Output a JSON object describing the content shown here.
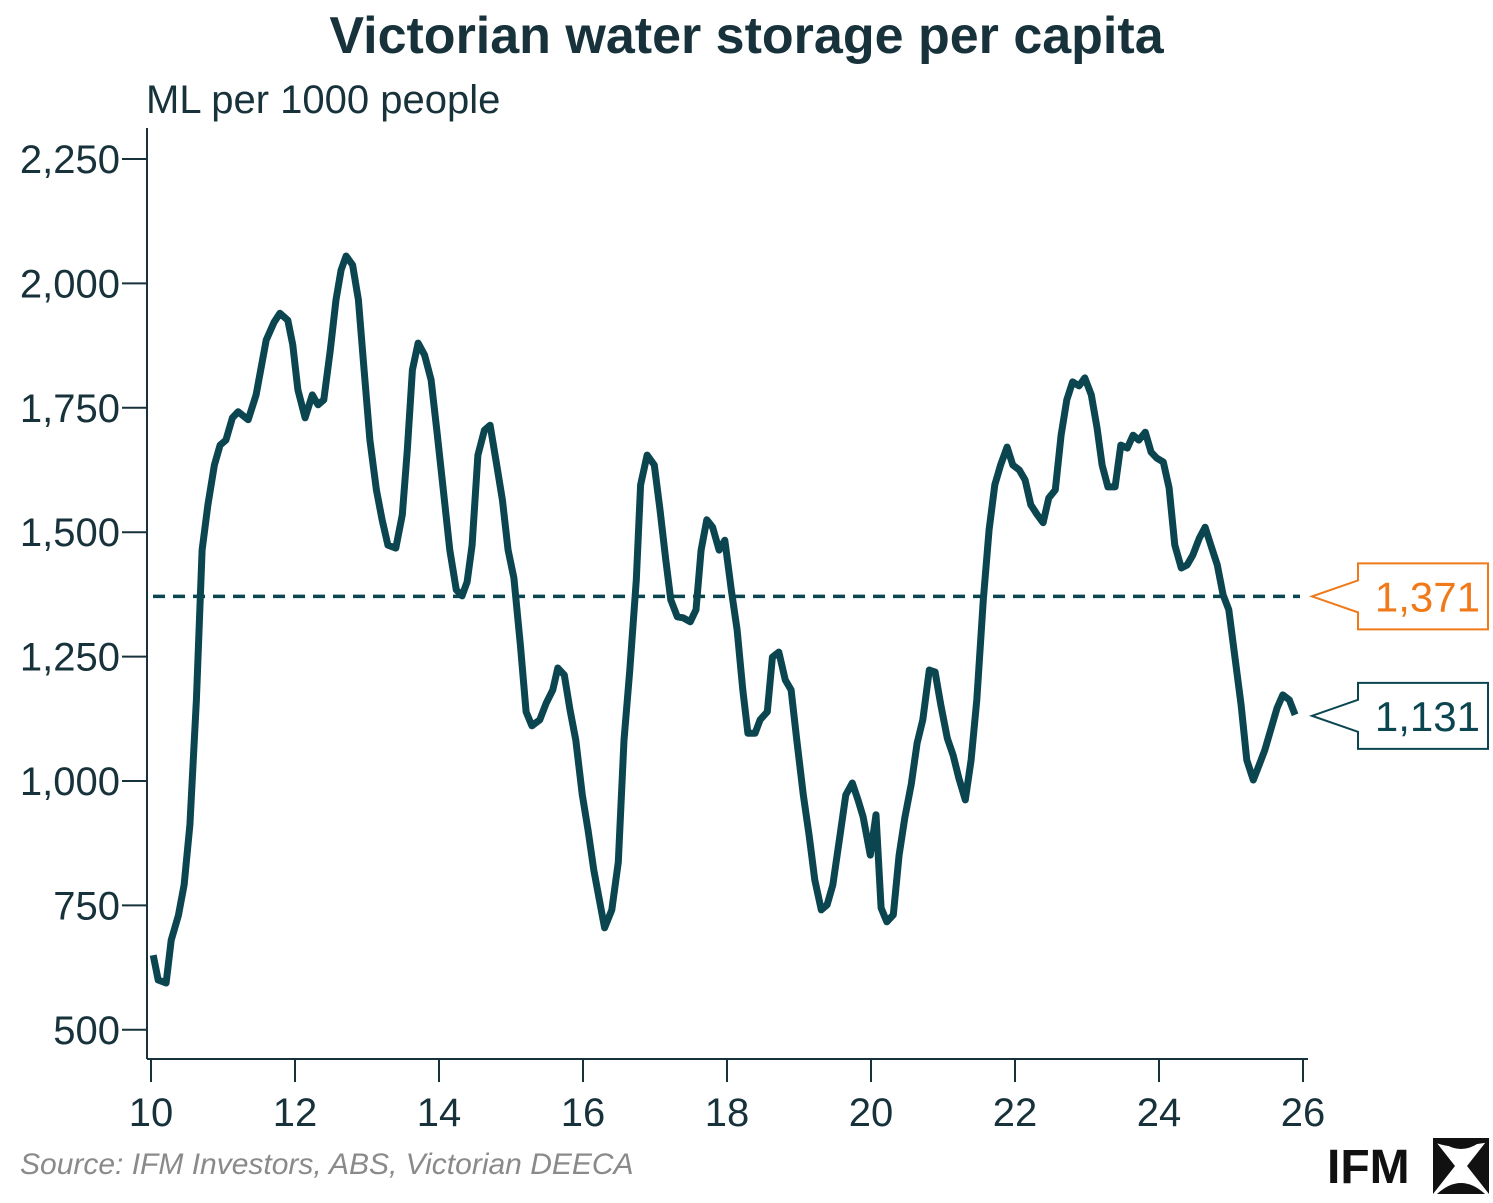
{
  "chart_data": {
    "type": "line",
    "title": "Victorian water storage per capita",
    "ylabel": "ML per 1000 people",
    "xlabel": "",
    "xlim": [
      10,
      26
    ],
    "ylim": [
      450,
      2300
    ],
    "x_ticks": [
      "10",
      "12",
      "14",
      "16",
      "18",
      "20",
      "22",
      "24",
      "26"
    ],
    "y_ticks": [
      "500",
      "750",
      "1,000",
      "1,250",
      "1,500",
      "1,750",
      "2,000",
      "2,250"
    ],
    "grid": false,
    "series": [
      {
        "color": "#0b4650",
        "x": [
          10.03,
          10.1,
          10.21,
          10.28,
          10.38,
          10.46,
          10.54,
          10.63,
          10.71,
          10.79,
          10.88,
          10.96,
          11.04,
          11.13,
          11.21,
          11.35,
          11.46,
          11.6,
          11.71,
          11.79,
          11.9,
          11.97,
          12.04,
          12.14,
          12.24,
          12.32,
          12.4,
          12.49,
          12.57,
          12.64,
          12.71,
          12.8,
          12.88,
          12.96,
          13.04,
          13.13,
          13.21,
          13.29,
          13.4,
          13.49,
          13.56,
          13.63,
          13.71,
          13.8,
          13.89,
          13.97,
          14.06,
          14.15,
          14.24,
          14.32,
          14.39,
          14.46,
          14.54,
          14.63,
          14.71,
          14.79,
          14.88,
          14.96,
          15.04,
          15.13,
          15.21,
          15.29,
          15.4,
          15.49,
          15.58,
          15.65,
          15.74,
          15.82,
          15.9,
          15.99,
          16.07,
          16.15,
          16.24,
          16.3,
          16.4,
          16.49,
          16.57,
          16.65,
          16.74,
          16.8,
          16.89,
          16.99,
          17.07,
          17.15,
          17.22,
          17.31,
          17.39,
          17.49,
          17.57,
          17.64,
          17.72,
          17.8,
          17.89,
          17.97,
          18.06,
          18.14,
          18.22,
          18.29,
          18.39,
          18.46,
          18.56,
          18.63,
          18.72,
          18.81,
          18.89,
          18.97,
          19.06,
          19.14,
          19.22,
          19.31,
          19.39,
          19.47,
          19.56,
          19.65,
          19.74,
          19.82,
          19.89,
          19.99,
          20.07,
          20.14,
          20.22,
          20.31,
          20.39,
          20.47,
          20.56,
          20.64,
          20.72,
          20.81,
          20.89,
          20.97,
          21.06,
          21.14,
          21.22,
          21.31,
          21.39,
          21.47,
          21.56,
          21.64,
          21.72,
          21.8,
          21.89,
          21.97,
          22.06,
          22.14,
          22.22,
          22.31,
          22.39,
          22.47,
          22.56,
          22.64,
          22.72,
          22.8,
          22.89,
          22.97,
          23.06,
          23.14,
          23.21,
          23.29,
          23.39,
          23.47,
          23.56,
          23.64,
          23.72,
          23.81,
          23.89,
          23.97,
          24.06,
          24.14,
          24.22,
          24.31,
          24.39,
          24.47,
          24.56,
          24.64,
          24.72,
          24.81,
          24.89,
          24.97,
          25.06,
          25.14,
          25.22,
          25.31,
          25.39,
          25.47,
          25.56,
          25.64,
          25.72,
          25.81,
          25.89
        ],
        "values": [
          650,
          600,
          594,
          680,
          730,
          791,
          912,
          1163,
          1464,
          1555,
          1635,
          1675,
          1685,
          1730,
          1742,
          1726,
          1776,
          1886,
          1922,
          1940,
          1926,
          1876,
          1786,
          1730,
          1776,
          1756,
          1766,
          1866,
          1967,
          2027,
          2055,
          2037,
          1967,
          1826,
          1685,
          1585,
          1525,
          1474,
          1468,
          1535,
          1665,
          1826,
          1880,
          1856,
          1806,
          1705,
          1585,
          1464,
          1384,
          1372,
          1400,
          1474,
          1655,
          1705,
          1715,
          1645,
          1565,
          1464,
          1408,
          1273,
          1139,
          1111,
          1123,
          1157,
          1183,
          1227,
          1213,
          1143,
          1082,
          972,
          902,
          821,
          751,
          705,
          741,
          837,
          1082,
          1223,
          1404,
          1595,
          1655,
          1635,
          1545,
          1444,
          1364,
          1330,
          1328,
          1320,
          1344,
          1464,
          1525,
          1510,
          1464,
          1484,
          1384,
          1304,
          1183,
          1096,
          1096,
          1123,
          1139,
          1249,
          1259,
          1203,
          1183,
          1082,
          972,
          891,
          801,
          741,
          751,
          791,
          881,
          972,
          996,
          962,
          928,
          851,
          932,
          745,
          717,
          731,
          851,
          926,
          994,
          1076,
          1123,
          1223,
          1219,
          1153,
          1086,
          1052,
          1006,
          962,
          1042,
          1163,
          1364,
          1505,
          1595,
          1635,
          1671,
          1635,
          1625,
          1605,
          1555,
          1535,
          1519,
          1569,
          1585,
          1695,
          1766,
          1802,
          1794,
          1810,
          1776,
          1709,
          1635,
          1591,
          1591,
          1675,
          1669,
          1695,
          1685,
          1701,
          1661,
          1649,
          1641,
          1589,
          1474,
          1428,
          1434,
          1454,
          1488,
          1510,
          1474,
          1434,
          1374,
          1344,
          1243,
          1153,
          1042,
          1002,
          1032,
          1062,
          1107,
          1147,
          1173,
          1163,
          1133
        ]
      }
    ],
    "reference_line": {
      "value": 1371,
      "style": "dashed",
      "color": "#0b4650"
    },
    "annotations": [
      {
        "label": "1,371",
        "value": 1371,
        "color": "#f07a1a"
      },
      {
        "label": "1,131",
        "value": 1131,
        "color": "#0b4650"
      }
    ]
  },
  "source": "Source: IFM Investors, ABS, Victorian DEECA",
  "logo": "IFM"
}
